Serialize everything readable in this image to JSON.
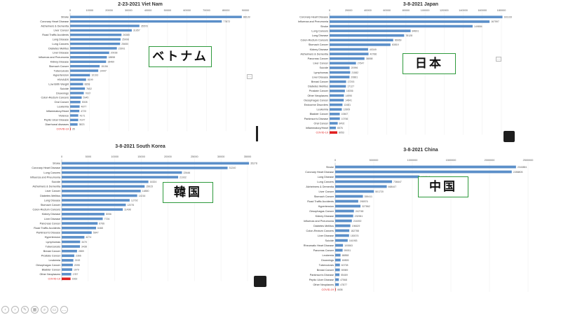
{
  "labels": {
    "vietnam": "ベトナム",
    "japan": "日本",
    "korea": "韓国",
    "china": "中国"
  },
  "colors": {
    "bar": "#5b8fc9",
    "covid": "#e02020",
    "label_border": "#2e9a3c"
  },
  "chart_data": [
    {
      "type": "bar",
      "orientation": "horizontal",
      "title": "2-23-2021 Viet Nam",
      "xlim": [
        0,
        90000
      ],
      "ticks": [
        0,
        10000,
        20000,
        30000,
        40000,
        50000,
        60000,
        70000,
        80000,
        90000
      ],
      "tick_labels": [
        "0",
        "10000",
        "20000",
        "30000",
        "40000",
        "50000",
        "60000",
        "70000",
        "80000",
        "90000"
      ],
      "categories": [
        "Stroke",
        "Coronary Heart Disease",
        "Alzheimers & Dementia",
        "Liver Cancer",
        "Road Traffic Accidents",
        "Lung Disease",
        "Lung Cancers",
        "Diabetes Mellitus",
        "Liver Disease",
        "Influenza and Pneumonia",
        "Kidney Disease",
        "Stomach Cancer",
        "Tuberculosis",
        "Hypertension",
        "HIV/AIDS",
        "Low Birth Weight",
        "Suicide",
        "Drownings",
        "Colon-Rectum Cancers",
        "Oral Cancer",
        "Leukemia",
        "Inflammatory/Heart",
        "Violence",
        "Peptic Ulcer Disease",
        "Diarrhoeal diseases",
        "COVID-19"
      ],
      "values": [
        88139,
        77872,
        35578,
        31657,
        26380,
        25908,
        25650,
        23991,
        20038,
        18858,
        18460,
        15156,
        14447,
        10193,
        8199,
        6658,
        7602,
        7007,
        5945,
        5308,
        4877,
        4720,
        4171,
        4147,
        3823,
        35
      ],
      "value_labels": [
        "88139",
        "77872",
        "35578",
        "31657",
        "26380",
        "25908",
        "25650",
        "23991",
        "20038",
        "18858",
        "18460",
        "15156",
        "14447",
        "10193",
        "8199",
        "6658",
        "7602",
        "7007",
        "5945",
        "5308",
        "4877",
        "4720",
        "4171",
        "4147",
        "3823",
        "35"
      ],
      "highlight": "COVID-19"
    },
    {
      "type": "bar",
      "orientation": "horizontal",
      "title": "3-8-2021 Japan",
      "xlim": [
        0,
        180000
      ],
      "ticks": [
        0,
        20000,
        40000,
        60000,
        80000,
        100000,
        120000,
        140000,
        160000,
        180000
      ],
      "tick_labels": [
        "0",
        "20000",
        "40000",
        "60000",
        "80000",
        "100000",
        "120000",
        "140000",
        "160000",
        "180000"
      ],
      "categories": [
        "Coronary Heart Disease",
        "Influenza and Pneumonia",
        "Stroke",
        "Lung Cancers",
        "Lung Disease",
        "Colon-Rectum Cancers",
        "Stomach Cancer",
        "Kidney Disease",
        "Alzheimers & Dementia",
        "Pancreas Cancer",
        "Liver Cancer",
        "Suicide",
        "Lymphomas",
        "Liver Disease",
        "Breast Cancer",
        "Diabetes Mellitus",
        "Prostate Cancer",
        "Other Neoplasms",
        "Oesophagus Cancer",
        "Endocrine Disorders",
        "Leukemia",
        "Bladder Cancer",
        "Parkinson's Disease",
        "Oral Cancer",
        "Inflammatory/Heart",
        "COVID-19"
      ],
      "values": [
        181133,
        167597,
        149854,
        84891,
        78128,
        66669,
        63819,
        40349,
        40786,
        36558,
        27647,
        20996,
        21582,
        20881,
        17293,
        17127,
        16036,
        14990,
        14841,
        13481,
        12809,
        10667,
        10766,
        8492,
        6576,
        8053
      ],
      "value_labels": [
        "181133",
        "167597",
        "149854",
        "84891",
        "78128",
        "66669",
        "63819",
        "40349",
        "40786",
        "36558",
        "27647",
        "20996",
        "21582",
        "20881",
        "17293",
        "17127",
        "16036",
        "14990",
        "14841",
        "13481",
        "12809",
        "10667",
        "10766",
        "8492",
        "6576",
        "8053"
      ],
      "highlight": "COVID-19"
    },
    {
      "type": "bar",
      "orientation": "horizontal",
      "title": "3-8-2021 South Korea",
      "xlim": [
        0,
        35000
      ],
      "ticks": [
        0,
        5000,
        10000,
        15000,
        20000,
        25000,
        30000,
        35000
      ],
      "tick_labels": [
        "0",
        "5000",
        "10000",
        "15000",
        "20000",
        "25000",
        "30000",
        "35000"
      ],
      "categories": [
        "Stroke",
        "Coronary Heart Disease",
        "Lung Cancers",
        "Influenza and Pneumonia",
        "Suicide",
        "Alzheimers & Dementia",
        "Liver Cancer",
        "Diabetes Mellitus",
        "Lung Disease",
        "Stomach Cancer",
        "Colon-Rectum Cancers",
        "Kidney Disease",
        "Liver Disease",
        "Pancreas Cancer",
        "Road Traffic Accidents",
        "Parkinson's Disease",
        "Hypertension",
        "Lymphomas",
        "Tuberculosis",
        "Breast Cancer",
        "Prostate Cancer",
        "Leukemia",
        "Oesophagus Cancer",
        "Bladder Cancer",
        "Other Neoplasms",
        "COVID-19"
      ],
      "values": [
        35278,
        31240,
        22646,
        21932,
        16324,
        15615,
        14880,
        14216,
        12792,
        12076,
        11498,
        8056,
        7726,
        6766,
        6468,
        5647,
        4274,
        3470,
        3438,
        2889,
        2366,
        2192,
        2095,
        1979,
        1787,
        1662
      ],
      "value_labels": [
        "35278",
        "31240",
        "22646",
        "21932",
        "16324",
        "15615",
        "14880",
        "14216",
        "12792",
        "12076",
        "11498",
        "8056",
        "7726",
        "6766",
        "6468",
        "5647",
        "4274",
        "3470",
        "3438",
        "2889",
        "2366",
        "2192",
        "2095",
        "1979",
        "1787",
        "1662"
      ],
      "highlight": "COVID-19"
    },
    {
      "type": "bar",
      "orientation": "horizontal",
      "title": "3-8-2021 China",
      "xlim": [
        0,
        2500000
      ],
      "ticks": [
        0,
        500000,
        1000000,
        1500000,
        2000000,
        2500000
      ],
      "tick_labels": [
        "0",
        "500000",
        "1000000",
        "1500000",
        "2000000",
        "2500000"
      ],
      "categories": [
        "Stroke",
        "Coronary Heart Disease",
        "Lung Disease",
        "Lung Cancers",
        "Alzheimers & Dementia",
        "Liver Cancer",
        "Stomach Cancer",
        "Road Traffic Accidents",
        "Hypertension",
        "Oesophagus Cancer",
        "Kidney Disease",
        "Influenza and Pneumonia",
        "Diabetes Mellitus",
        "Colon-Rectum Cancers",
        "Liver Disease",
        "Suicide",
        "Rheumatic Heart Disease",
        "Pancreas Cancer",
        "Leukemia",
        "Drownings",
        "Tuberculosis",
        "Breast Cancer",
        "Parkinson's Disease",
        "Peptic Ulcer Disease",
        "Other Neoplasms",
        "COVID-19"
      ],
      "values": [
        2343851,
        2288805,
        1092241,
        736647,
        668447,
        501720,
        359411,
        298976,
        327862,
        242748,
        232961,
        216092,
        196629,
        182788,
        180074,
        161953,
        100863,
        95931,
        68858,
        69895,
        60738,
        59989,
        55469,
        47568,
        47877,
        4636
      ],
      "value_labels": [
        "2343851",
        "2288805",
        "1092241",
        "736647",
        "668447",
        "501720",
        "359411",
        "298976",
        "327862",
        "242748",
        "232961",
        "216092",
        "196629",
        "182788",
        "180074",
        "161953",
        "100863",
        "95931",
        "68858",
        "69895",
        "60738",
        "59989",
        "55469",
        "47568",
        "47877",
        "4636"
      ],
      "highlight": "COVID-19"
    }
  ]
}
